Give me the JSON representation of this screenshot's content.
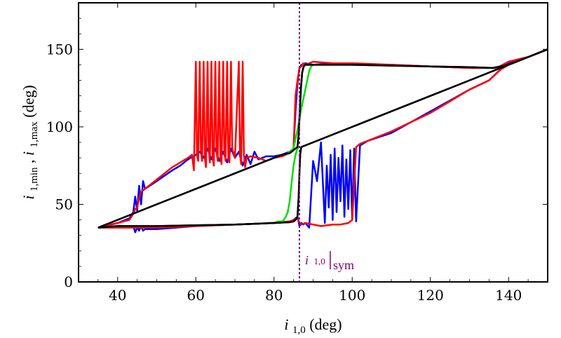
{
  "chart_data": {
    "type": "line",
    "xlabel": {
      "main": "i",
      "sub": "1,0",
      "unit": " (deg)"
    },
    "ylabel": {
      "main1": "i",
      "sub1": "1,min",
      "sep": " , ",
      "main2": "i",
      "sub2": "1,max",
      "unit": " (deg)"
    },
    "xlim": [
      30,
      150
    ],
    "ylim": [
      0,
      180
    ],
    "xticks": [
      40,
      60,
      80,
      100,
      120,
      140
    ],
    "yticks": [
      0,
      50,
      100,
      150
    ],
    "grid": false,
    "vline": {
      "x": 86.5,
      "color": "#800080",
      "label_main": "i",
      "label_sub": "1,0",
      "label_tail": "sym"
    },
    "colors": {
      "red": "#ff0000",
      "blue": "#0000ff",
      "green": "#00e000",
      "black": "#000000"
    },
    "series": [
      {
        "name": "blue-max",
        "color": "#0000ff",
        "points": [
          [
            35,
            35
          ],
          [
            40,
            38
          ],
          [
            43,
            41
          ],
          [
            44,
            45
          ],
          [
            44.5,
            55
          ],
          [
            45,
            46
          ],
          [
            45.5,
            62
          ],
          [
            46,
            50
          ],
          [
            46.5,
            65
          ],
          [
            47,
            60
          ],
          [
            50,
            65
          ],
          [
            54,
            72
          ],
          [
            56,
            75
          ],
          [
            58,
            79
          ],
          [
            60,
            82
          ],
          [
            61,
            84
          ],
          [
            62,
            80
          ],
          [
            63,
            86
          ],
          [
            64,
            79
          ],
          [
            65,
            86
          ],
          [
            66,
            78
          ],
          [
            67,
            84
          ],
          [
            68,
            77
          ],
          [
            69,
            86
          ],
          [
            70,
            80
          ],
          [
            71,
            84
          ],
          [
            72,
            75
          ],
          [
            73,
            82
          ],
          [
            74,
            76
          ],
          [
            75,
            84
          ],
          [
            76,
            79
          ],
          [
            78,
            81
          ],
          [
            80,
            81
          ],
          [
            82,
            82
          ],
          [
            84,
            84
          ],
          [
            85,
            86
          ],
          [
            85.5,
            110
          ],
          [
            86,
            128
          ],
          [
            86.5,
            138
          ],
          [
            87,
            140
          ],
          [
            88,
            141
          ],
          [
            90,
            140
          ],
          [
            95,
            141
          ],
          [
            100,
            140
          ],
          [
            110,
            140
          ],
          [
            120,
            139
          ],
          [
            130,
            138
          ],
          [
            135,
            138
          ],
          [
            137,
            138
          ],
          [
            140,
            141
          ],
          [
            145,
            145
          ],
          [
            150,
            150
          ]
        ]
      },
      {
        "name": "blue-min",
        "color": "#0000ff",
        "points": [
          [
            35,
            35
          ],
          [
            40,
            36
          ],
          [
            43,
            36
          ],
          [
            44,
            36
          ],
          [
            44.5,
            32
          ],
          [
            45,
            35
          ],
          [
            45.5,
            33
          ],
          [
            46,
            36
          ],
          [
            46.5,
            33
          ],
          [
            47,
            34
          ],
          [
            50,
            34
          ],
          [
            60,
            36
          ],
          [
            70,
            37
          ],
          [
            80,
            38
          ],
          [
            84,
            39
          ],
          [
            85,
            40
          ],
          [
            86,
            42
          ],
          [
            86.5,
            36
          ],
          [
            87,
            38
          ],
          [
            87.5,
            37
          ],
          [
            88,
            38
          ],
          [
            89,
            35
          ],
          [
            90,
            78
          ],
          [
            91,
            65
          ],
          [
            92,
            90
          ],
          [
            93,
            38
          ],
          [
            93.5,
            75
          ],
          [
            94,
            48
          ],
          [
            94.5,
            82
          ],
          [
            95,
            40
          ],
          [
            95.5,
            86
          ],
          [
            96,
            45
          ],
          [
            96.5,
            80
          ],
          [
            97,
            52
          ],
          [
            97.5,
            88
          ],
          [
            98,
            42
          ],
          [
            98.5,
            79
          ],
          [
            99,
            47
          ],
          [
            99.5,
            85
          ],
          [
            100,
            40
          ],
          [
            100.5,
            86
          ],
          [
            101,
            39
          ],
          [
            102,
            88
          ],
          [
            104,
            91
          ],
          [
            110,
            96
          ],
          [
            120,
            110
          ],
          [
            130,
            124
          ],
          [
            135,
            130
          ],
          [
            140,
            142
          ],
          [
            145,
            145
          ],
          [
            150,
            150
          ]
        ]
      },
      {
        "name": "red-max",
        "color": "#ff0000",
        "points": [
          [
            35,
            35
          ],
          [
            40,
            38
          ],
          [
            43,
            40
          ],
          [
            44,
            44
          ],
          [
            44.5,
            47
          ],
          [
            45,
            48
          ],
          [
            45.5,
            54
          ],
          [
            46,
            58
          ],
          [
            47,
            60
          ],
          [
            50,
            66
          ],
          [
            52,
            70
          ],
          [
            54,
            74
          ],
          [
            56,
            77
          ],
          [
            58,
            80
          ],
          [
            59,
            82
          ],
          [
            59.5,
            72
          ],
          [
            60,
            142
          ],
          [
            60.3,
            82
          ],
          [
            60.6,
            78
          ],
          [
            61,
            142
          ],
          [
            61.3,
            85
          ],
          [
            61.6,
            78
          ],
          [
            62,
            142
          ],
          [
            62.3,
            80
          ],
          [
            62.6,
            74
          ],
          [
            63,
            142
          ],
          [
            63.3,
            86
          ],
          [
            63.6,
            77
          ],
          [
            64,
            142
          ],
          [
            64.3,
            80
          ],
          [
            64.6,
            75
          ],
          [
            65,
            142
          ],
          [
            65.3,
            84
          ],
          [
            65.6,
            78
          ],
          [
            66,
            142
          ],
          [
            66.3,
            79
          ],
          [
            66.6,
            76
          ],
          [
            67,
            142
          ],
          [
            67.3,
            84
          ],
          [
            67.6,
            78
          ],
          [
            68,
            142
          ],
          [
            68.3,
            80
          ],
          [
            68.6,
            77
          ],
          [
            69,
            142
          ],
          [
            69.3,
            86
          ],
          [
            70,
            80
          ],
          [
            71,
            142
          ],
          [
            71.3,
            82
          ],
          [
            71.6,
            76
          ],
          [
            72,
            142
          ],
          [
            72.3,
            82
          ],
          [
            72.6,
            74
          ],
          [
            73,
            80
          ],
          [
            74,
            81
          ],
          [
            76,
            80
          ],
          [
            78,
            78
          ],
          [
            80,
            80
          ],
          [
            82,
            81
          ],
          [
            83,
            82
          ],
          [
            84,
            84
          ],
          [
            85,
            86
          ],
          [
            85.5,
            120
          ],
          [
            86,
            130
          ],
          [
            86.5,
            138
          ],
          [
            87,
            139
          ],
          [
            87.5,
            141
          ],
          [
            88,
            140
          ],
          [
            90,
            142
          ],
          [
            95,
            141
          ],
          [
            100,
            141
          ],
          [
            110,
            140
          ],
          [
            120,
            139
          ],
          [
            130,
            138
          ],
          [
            135,
            138
          ],
          [
            137,
            138
          ],
          [
            140,
            142
          ],
          [
            145,
            145
          ],
          [
            150,
            150
          ]
        ]
      },
      {
        "name": "red-min",
        "color": "#ff0000",
        "points": [
          [
            35,
            35
          ],
          [
            40,
            35
          ],
          [
            45,
            35
          ],
          [
            50,
            35
          ],
          [
            60,
            36
          ],
          [
            70,
            37
          ],
          [
            80,
            38
          ],
          [
            84,
            39
          ],
          [
            85,
            40
          ],
          [
            86,
            41
          ],
          [
            86.5,
            38
          ],
          [
            87,
            37
          ],
          [
            88,
            38
          ],
          [
            90,
            37
          ],
          [
            92,
            36
          ],
          [
            95,
            37
          ],
          [
            97,
            37
          ],
          [
            99,
            38
          ],
          [
            100,
            40
          ],
          [
            101,
            87
          ],
          [
            102,
            89
          ],
          [
            104,
            91
          ],
          [
            110,
            97
          ],
          [
            120,
            109
          ],
          [
            130,
            124
          ],
          [
            135,
            130
          ],
          [
            138,
            137
          ],
          [
            140,
            140
          ],
          [
            145,
            145
          ],
          [
            150,
            150
          ]
        ]
      },
      {
        "name": "green-max",
        "color": "#00e000",
        "points": [
          [
            83,
            82
          ],
          [
            84,
            84
          ],
          [
            85,
            86
          ],
          [
            85.5,
            92
          ],
          [
            86,
            98
          ],
          [
            86.5,
            105
          ],
          [
            87,
            112
          ],
          [
            87.5,
            118
          ],
          [
            88,
            124
          ],
          [
            88.5,
            130
          ],
          [
            89,
            136
          ],
          [
            89.5,
            139
          ],
          [
            90,
            140
          ]
        ]
      },
      {
        "name": "green-min",
        "color": "#00e000",
        "points": [
          [
            78,
            38
          ],
          [
            80,
            38
          ],
          [
            81,
            39
          ],
          [
            82,
            39
          ],
          [
            82.5,
            40
          ],
          [
            83,
            42
          ],
          [
            83.5,
            45
          ],
          [
            84,
            52
          ],
          [
            84.5,
            64
          ],
          [
            85,
            75
          ],
          [
            85.5,
            82
          ],
          [
            86,
            86
          ],
          [
            86.5,
            87
          ]
        ]
      },
      {
        "name": "black-max",
        "color": "#000000",
        "points": [
          [
            35,
            35
          ],
          [
            50,
            50
          ],
          [
            60,
            60
          ],
          [
            70,
            70
          ],
          [
            80,
            80
          ],
          [
            82,
            82
          ],
          [
            84,
            83
          ],
          [
            85,
            85
          ],
          [
            85.5,
            86
          ],
          [
            86,
            87
          ],
          [
            86.3,
            95
          ],
          [
            86.6,
            110
          ],
          [
            86.9,
            125
          ],
          [
            87.2,
            135
          ],
          [
            87.6,
            139
          ],
          [
            88,
            140
          ],
          [
            95,
            140
          ],
          [
            100,
            140
          ],
          [
            110,
            139.5
          ],
          [
            120,
            139
          ],
          [
            130,
            138.5
          ],
          [
            136,
            138
          ],
          [
            140,
            140
          ],
          [
            150,
            150
          ]
        ]
      },
      {
        "name": "black-min",
        "color": "#000000",
        "points": [
          [
            35,
            35
          ],
          [
            40,
            36
          ],
          [
            50,
            36
          ],
          [
            60,
            36.5
          ],
          [
            70,
            37
          ],
          [
            80,
            38
          ],
          [
            84,
            38.5
          ],
          [
            85,
            39
          ],
          [
            85.5,
            40
          ],
          [
            86,
            42
          ],
          [
            86.3,
            55
          ],
          [
            86.5,
            70
          ],
          [
            86.7,
            82
          ],
          [
            86.9,
            86
          ],
          [
            87,
            87
          ],
          [
            90,
            90
          ],
          [
            100,
            100
          ],
          [
            110,
            110
          ],
          [
            120,
            120
          ],
          [
            130,
            130
          ],
          [
            140,
            140
          ],
          [
            150,
            150
          ]
        ]
      }
    ]
  }
}
